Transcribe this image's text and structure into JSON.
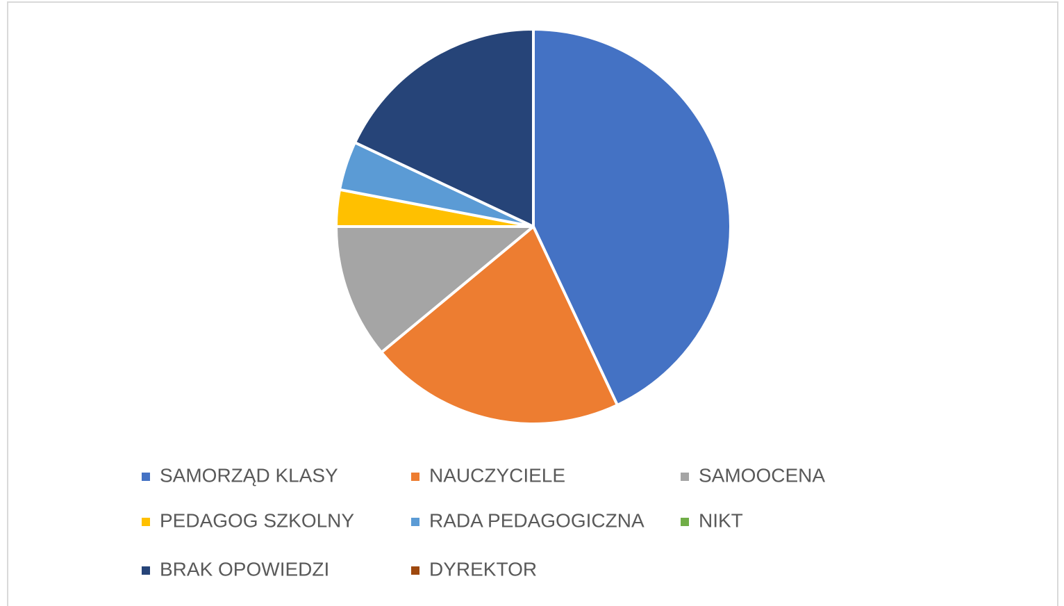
{
  "chart_data": {
    "type": "pie",
    "categories": [
      "SAMORZĄD KLASY",
      "NAUCZYCIELE",
      "SAMOOCENA",
      "PEDAGOG SZKOLNY",
      "RADA PEDAGOGICZNA",
      "NIKT",
      "BRAK OPOWIEDZI",
      "DYREKTOR"
    ],
    "values": [
      43,
      21,
      11,
      3,
      4,
      0,
      18,
      0
    ],
    "colors": [
      "#4472c4",
      "#ed7d31",
      "#a5a5a5",
      "#ffc000",
      "#5b9bd5",
      "#70ad47",
      "#264478",
      "#9e480e"
    ],
    "legend": "bottom"
  }
}
